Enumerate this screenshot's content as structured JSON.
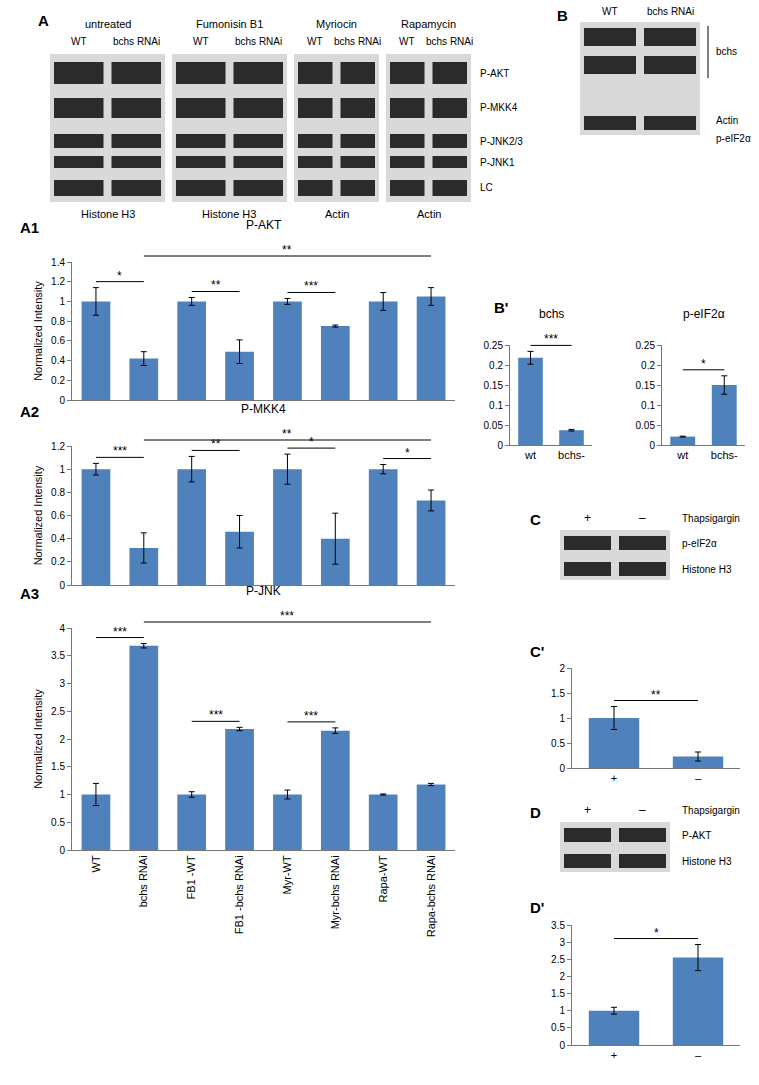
{
  "chart_data": [
    {
      "panel": "A1",
      "type": "bar",
      "title": "P-AKT",
      "y_label": "Normalized Intensity",
      "categories": [
        "WT",
        "bchs RNAi",
        "FB1 -WT",
        "FB1 -bchs RNAi",
        "Myr-WT",
        "Myr-bchs RNAi",
        "Rapa-WT",
        "Rapa-bchs RNAi"
      ],
      "values": [
        1.0,
        0.42,
        1.0,
        0.49,
        1.0,
        0.75,
        1.0,
        1.05
      ],
      "errors": [
        0.14,
        0.07,
        0.04,
        0.12,
        0.03,
        0.01,
        0.09,
        0.09
      ],
      "color": "#4f81bd",
      "ylim": [
        0,
        1.4
      ],
      "yticks": [
        0,
        0.2,
        0.4,
        0.6,
        0.8,
        1,
        1.2,
        1.4
      ],
      "grid": false,
      "tick_labels": "y",
      "significance": [
        {
          "between": [
            "WT",
            "bchs RNAi"
          ],
          "label": "*"
        },
        {
          "between": [
            "FB1 -WT",
            "FB1 -bchs RNAi"
          ],
          "label": "**"
        },
        {
          "between": [
            "Myr-WT",
            "Myr-bchs RNAi"
          ],
          "label": "***"
        },
        {
          "between": [
            "bchs RNAi",
            "Rapa-bchs RNAi"
          ],
          "label": "**"
        }
      ]
    },
    {
      "panel": "A2",
      "type": "bar",
      "title": "P-MKK4",
      "y_label": "Normalized Intensity",
      "categories": [
        "WT",
        "bchs RNAi",
        "FB1 -WT",
        "FB1 -bchs RNAi",
        "Myr-WT",
        "Myr-bchs RNAi",
        "Rapa-WT",
        "Rapa-bchs RNAi"
      ],
      "values": [
        1.0,
        0.32,
        1.0,
        0.46,
        1.0,
        0.4,
        1.0,
        0.73
      ],
      "errors": [
        0.05,
        0.13,
        0.11,
        0.14,
        0.13,
        0.22,
        0.04,
        0.09
      ],
      "color": "#4f81bd",
      "ylim": [
        0,
        1.2
      ],
      "yticks": [
        0,
        0.2,
        0.4,
        0.6,
        0.8,
        1,
        1.2
      ],
      "grid": false,
      "tick_labels": "y",
      "significance": [
        {
          "between": [
            "WT",
            "bchs RNAi"
          ],
          "label": "***"
        },
        {
          "between": [
            "FB1 -WT",
            "FB1 -bchs RNAi"
          ],
          "label": "**"
        },
        {
          "between": [
            "Myr-WT",
            "Myr-bchs RNAi"
          ],
          "label": "*"
        },
        {
          "between": [
            "Rapa-WT",
            "Rapa-bchs RNAi"
          ],
          "label": "*"
        },
        {
          "between": [
            "bchs RNAi",
            "Rapa-bchs RNAi"
          ],
          "label": "**"
        }
      ]
    },
    {
      "panel": "A3",
      "type": "bar",
      "title": "P-JNK",
      "y_label": "Normalized Intensity",
      "categories": [
        "WT",
        "bchs RNAi",
        "FB1 -WT",
        "FB1 -bchs RNAi",
        "Myr-WT",
        "Myr-bchs RNAi",
        "Rapa-WT",
        "Rapa-bchs RNAi"
      ],
      "values": [
        1.0,
        3.68,
        1.0,
        2.18,
        1.0,
        2.15,
        1.0,
        1.18
      ],
      "errors": [
        0.2,
        0.04,
        0.05,
        0.03,
        0.08,
        0.05,
        0.01,
        0.02
      ],
      "color": "#4f81bd",
      "ylim": [
        0,
        4
      ],
      "yticks": [
        0,
        0.5,
        1,
        1.5,
        2,
        2.5,
        3,
        3.5,
        4
      ],
      "grid": false,
      "tick_labels": true,
      "significance": [
        {
          "between": [
            "WT",
            "bchs RNAi"
          ],
          "label": "***"
        },
        {
          "between": [
            "FB1 -WT",
            "FB1 -bchs RNAi"
          ],
          "label": "***"
        },
        {
          "between": [
            "Myr-WT",
            "Myr-bchs RNAi"
          ],
          "label": "***"
        },
        {
          "between": [
            "bchs RNAi",
            "Rapa-bchs RNAi"
          ],
          "label": "***"
        }
      ]
    },
    {
      "panel": "B'",
      "type": "bar",
      "title": "bchs",
      "categories": [
        "wt",
        "bchs-"
      ],
      "values": [
        0.218,
        0.037
      ],
      "errors": [
        0.016,
        0.002
      ],
      "color": "#4f81bd",
      "ylim": [
        0,
        0.25
      ],
      "yticks": [
        0,
        0.05,
        0.1,
        0.15,
        0.2,
        0.25
      ],
      "grid": false,
      "tick_labels": true,
      "significance": [
        {
          "between": [
            "wt",
            "bchs-"
          ],
          "label": "***"
        }
      ]
    },
    {
      "type": "bar",
      "title": "p-eIF2α",
      "categories": [
        "wt",
        "bchs-"
      ],
      "values": [
        0.021,
        0.15
      ],
      "errors": [
        0.001,
        0.023
      ],
      "color": "#4f81bd",
      "ylim": [
        0,
        0.25
      ],
      "yticks": [
        0,
        0.05,
        0.1,
        0.15,
        0.2,
        0.25
      ],
      "grid": false,
      "tick_labels": true,
      "significance": [
        {
          "between": [
            "wt",
            "bchs-"
          ],
          "label": "*"
        }
      ]
    },
    {
      "panel": "C'",
      "type": "bar",
      "categories": [
        "+",
        "–"
      ],
      "values": [
        1.0,
        0.23
      ],
      "errors": [
        0.23,
        0.09
      ],
      "color": "#4f81bd",
      "ylim": [
        0,
        2
      ],
      "yticks": [
        0,
        0.5,
        1,
        1.5,
        2
      ],
      "grid": false,
      "tick_labels": true,
      "significance": [
        {
          "between": [
            "+",
            "–"
          ],
          "label": "**"
        }
      ]
    },
    {
      "panel": "D'",
      "type": "bar",
      "categories": [
        "+",
        "–"
      ],
      "values": [
        1.0,
        2.55
      ],
      "errors": [
        0.1,
        0.38
      ],
      "color": "#4f81bd",
      "ylim": [
        0,
        3.5
      ],
      "yticks": [
        0,
        0.5,
        1,
        1.5,
        2,
        2.5,
        3,
        3.5
      ],
      "grid": false,
      "tick_labels": true,
      "significance": [
        {
          "between": [
            "+",
            "–"
          ],
          "label": "*"
        }
      ]
    }
  ],
  "blots": {
    "A": {
      "panel": "A",
      "groups": [
        {
          "label": "untreated",
          "lanes": [
            "WT",
            "bchs RNAi"
          ],
          "loading": "Histone H3"
        },
        {
          "label": "Fumonisin B1",
          "lanes": [
            "WT",
            "bchs RNAi"
          ],
          "loading": "Histone H3"
        },
        {
          "label": "Myriocin",
          "lanes": [
            "WT",
            "bchs RNAi"
          ],
          "loading": "Actin"
        },
        {
          "label": "Rapamycin",
          "lanes": [
            "WT",
            "bchs RNAi"
          ],
          "loading": "Actin"
        }
      ],
      "rows": [
        "P-AKT",
        "P-MKK4",
        "P-JNK2/3",
        "P-JNK1",
        "LC"
      ]
    },
    "B": {
      "panel": "B",
      "lanes": [
        "WT",
        "bchs RNAi"
      ],
      "rows": [
        "bchs",
        "Actin",
        "p-eIF2α"
      ]
    },
    "C": {
      "panel": "C",
      "treatment": "Thapsigargin",
      "lanes": [
        "+",
        "–"
      ],
      "rows": [
        "p-eIF2α",
        "Histone H3"
      ]
    },
    "D": {
      "panel": "D",
      "treatment": "Thapsigargin",
      "lanes": [
        "+",
        "–"
      ],
      "rows": [
        "P-AKT",
        "Histone H3"
      ]
    }
  }
}
